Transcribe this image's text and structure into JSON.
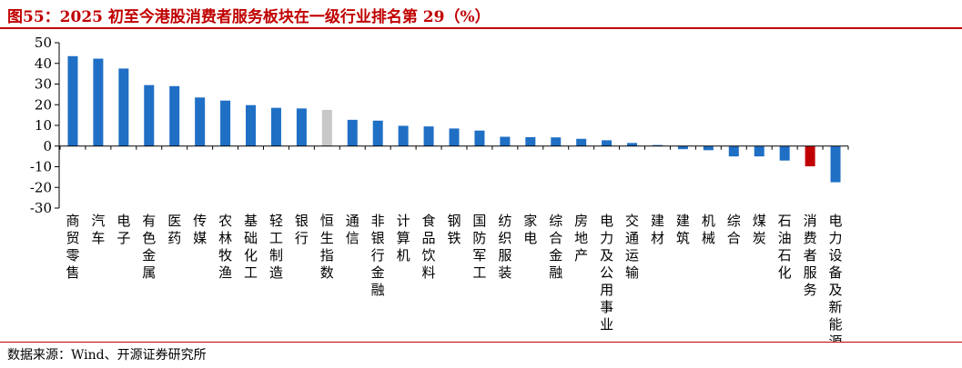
{
  "title": "图55：2025 初至今港股消费者服务板块在一级行业排名第 29（%）",
  "source": "数据来源：Wind、开源证券研究所",
  "colors": {
    "default": "#1f6fc5",
    "highlight": "#c00000",
    "index": "#c8c8c8",
    "title": "#c00000"
  },
  "chart_data": {
    "type": "bar",
    "title": "2025 初至今港股消费者服务板块在一级行业排名第 29（%）",
    "xlabel": "",
    "ylabel": "",
    "ylim": [
      -30,
      50
    ],
    "yticks": [
      50,
      40,
      30,
      20,
      10,
      0,
      -10,
      -20,
      -30
    ],
    "grid": false,
    "categories": [
      "商贸零售",
      "汽车",
      "电子",
      "有色金属",
      "医药",
      "传媒",
      "农林牧渔",
      "基础化工",
      "轻工制造",
      "银行",
      "恒生指数",
      "通信",
      "非银行金融",
      "计算机",
      "食品饮料",
      "钢铁",
      "国防军工",
      "纺织服装",
      "家电",
      "综合金融",
      "房地产",
      "电力及公用事业",
      "交通运输",
      "建材",
      "建筑",
      "机械",
      "综合",
      "煤炭",
      "石油石化",
      "消费者服务",
      "电力设备及新能源"
    ],
    "values": [
      43.5,
      42.3,
      37.5,
      29.5,
      29.0,
      23.5,
      22.0,
      19.8,
      18.5,
      18.2,
      17.5,
      12.7,
      12.3,
      9.8,
      9.5,
      8.5,
      7.5,
      4.5,
      4.3,
      4.2,
      3.5,
      2.8,
      1.5,
      0.5,
      -1.5,
      -2.0,
      -5.0,
      -5.0,
      -7.0,
      -9.8,
      -17.5
    ],
    "highlight": "消费者服务",
    "reference": "恒生指数"
  }
}
